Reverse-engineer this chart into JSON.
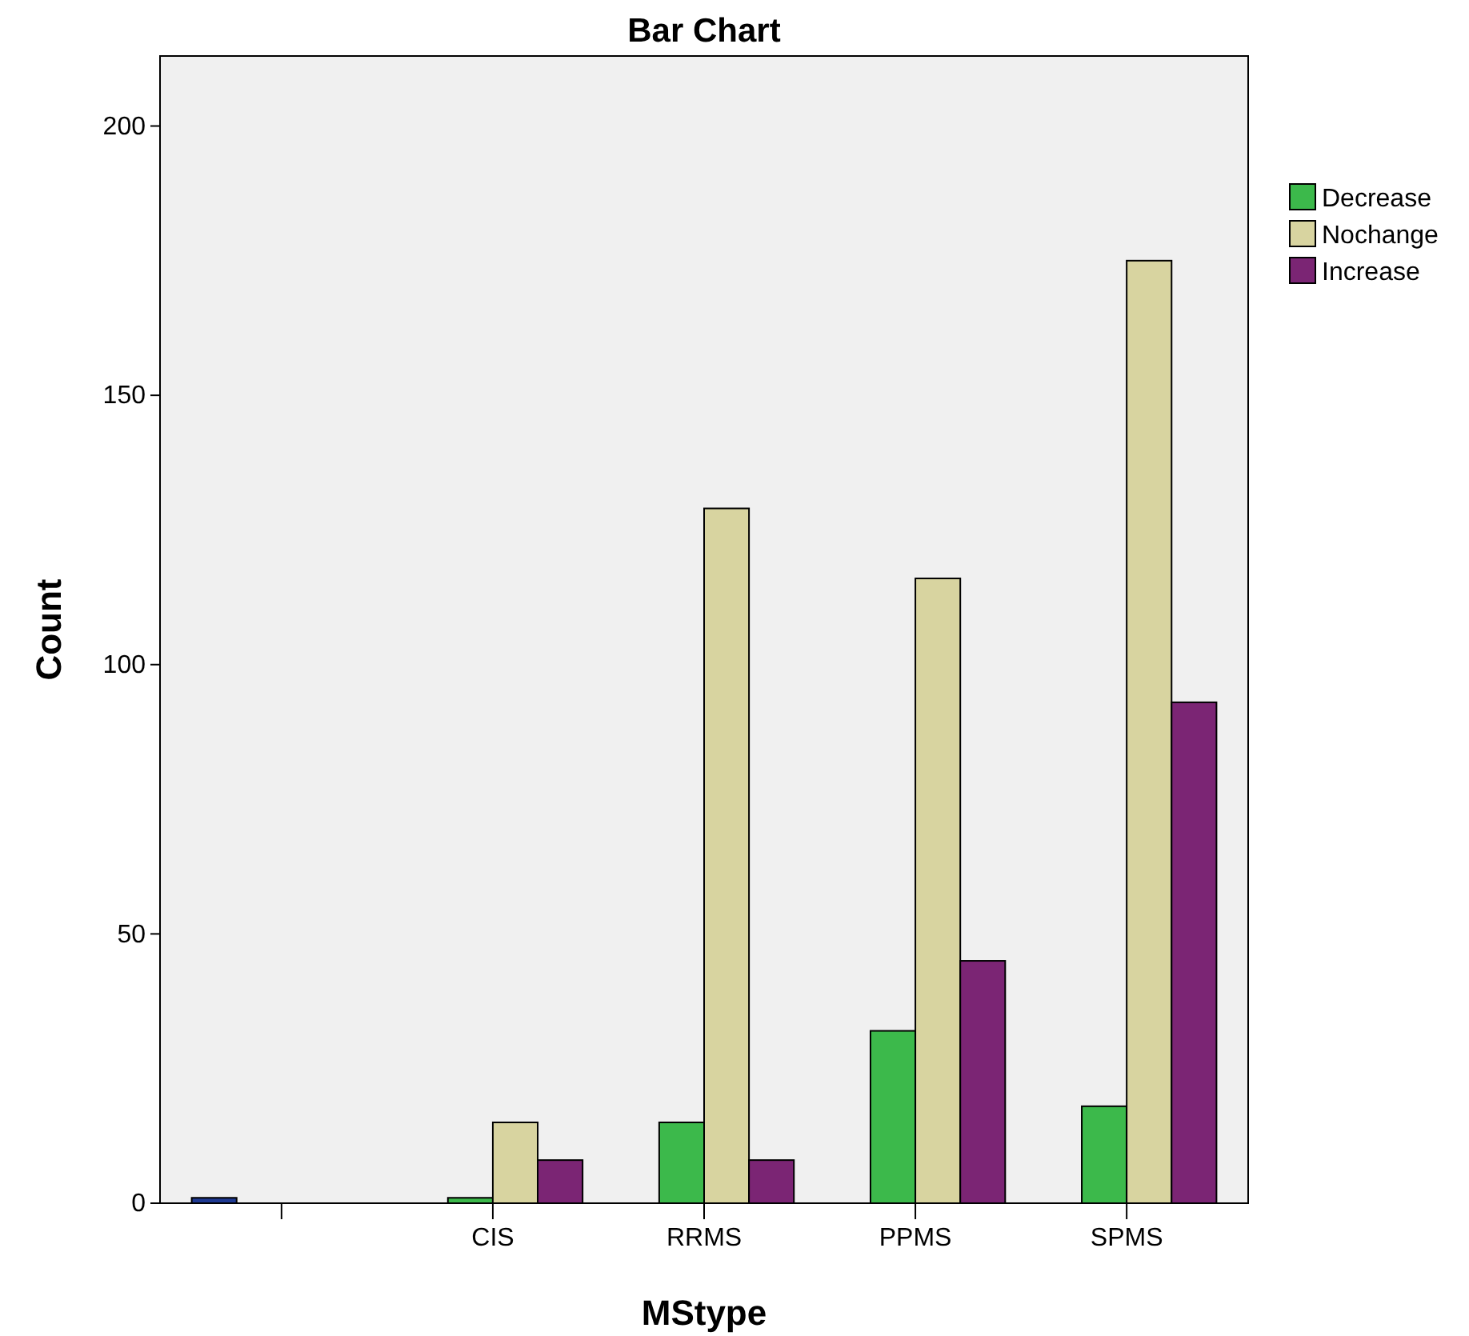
{
  "chart_data": {
    "type": "bar",
    "title": "Bar Chart",
    "xlabel": "MStype",
    "ylabel": "Count",
    "categories": [
      null,
      "CIS",
      "RRMS",
      "PPMS",
      "SPMS"
    ],
    "series": [
      {
        "color": "#1f3a93",
        "values": [
          1,
          null,
          null,
          null,
          null
        ]
      },
      {
        "name": "Decrease",
        "color": "#3cb94b",
        "values": [
          null,
          1,
          15,
          32,
          18
        ]
      },
      {
        "name": "Nochange",
        "color": "#d8d4a0",
        "values": [
          null,
          15,
          129,
          116,
          175
        ]
      },
      {
        "name": "Increase",
        "color": "#7b2574",
        "values": [
          null,
          8,
          8,
          45,
          93
        ]
      }
    ],
    "ylim": [
      0,
      213
    ],
    "yticks": [
      0,
      50,
      100,
      150,
      200
    ],
    "grid": false,
    "legend": "top right"
  }
}
